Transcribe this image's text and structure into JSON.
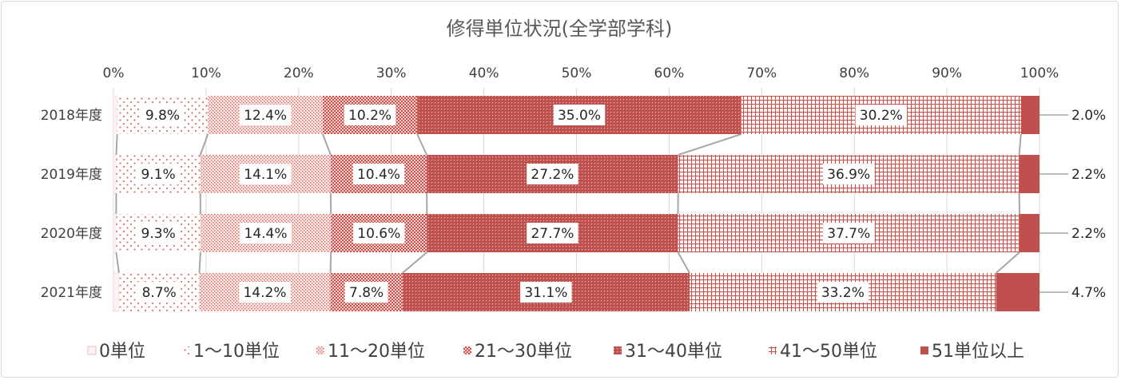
{
  "chart_data": {
    "type": "bar",
    "orientation": "horizontal",
    "stacked": "percent",
    "title": "修得単位状況(全学部学科)",
    "categories": [
      "2018年度",
      "2019年度",
      "2020年度",
      "2021年度"
    ],
    "x_ticks": [
      "0%",
      "10%",
      "20%",
      "30%",
      "40%",
      "50%",
      "60%",
      "70%",
      "80%",
      "90%",
      "100%"
    ],
    "xlim": [
      0,
      100
    ],
    "grid": true,
    "legend_position": "bottom",
    "series_lines": true,
    "series": [
      {
        "name": "0単位",
        "values": [
          0.4,
          0.3,
          0.3,
          0.6
        ],
        "labels": [
          "",
          "",
          "",
          ""
        ],
        "pattern": "none",
        "color": "#fdf3f2"
      },
      {
        "name": "1〜10単位",
        "values": [
          9.8,
          9.1,
          9.3,
          8.7
        ],
        "labels": [
          "9.8%",
          "9.1%",
          "9.3%",
          "8.7%"
        ],
        "pattern": "dots-sparse",
        "color": "#e8a6a1"
      },
      {
        "name": "11〜20単位",
        "values": [
          12.4,
          14.1,
          14.4,
          14.2
        ],
        "labels": [
          "12.4%",
          "14.1%",
          "14.4%",
          "14.2%"
        ],
        "pattern": "dots-dense",
        "color": "#e49a94"
      },
      {
        "name": "21〜30単位",
        "values": [
          10.2,
          10.4,
          10.6,
          7.8
        ],
        "labels": [
          "10.2%",
          "10.4%",
          "10.6%",
          "7.8%"
        ],
        "pattern": "checker",
        "color": "#db8882"
      },
      {
        "name": "31〜40単位",
        "values": [
          35.0,
          27.2,
          27.7,
          31.1
        ],
        "labels": [
          "35.0%",
          "27.2%",
          "27.7%",
          "31.1%"
        ],
        "pattern": "grid-dense",
        "color": "#c6504a"
      },
      {
        "name": "41〜50単位",
        "values": [
          30.2,
          36.9,
          37.7,
          33.2
        ],
        "labels": [
          "30.2%",
          "36.9%",
          "37.7%",
          "33.2%"
        ],
        "pattern": "grid",
        "color": "#d4736d"
      },
      {
        "name": "51単位以上",
        "values": [
          2.0,
          2.2,
          2.2,
          4.7
        ],
        "labels": [
          "2.0%",
          "2.2%",
          "2.2%",
          "4.7%"
        ],
        "pattern": "solid",
        "color": "#c0504d"
      }
    ]
  }
}
